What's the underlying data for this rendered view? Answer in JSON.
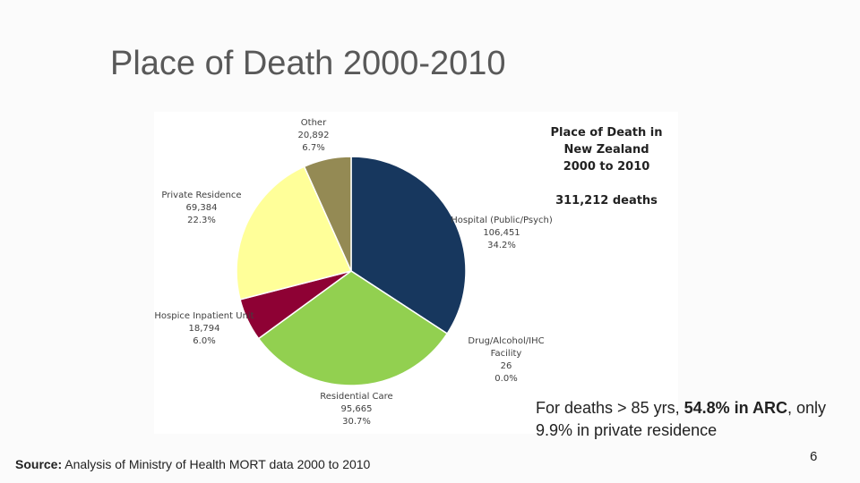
{
  "slide_title": "Place of Death 2000-2010",
  "chart_data": {
    "type": "pie",
    "title": "Place of Death in New Zealand 2000 to 2010",
    "total_label": "311,212 deaths",
    "categories": [
      "Hospital (Public/Psych)",
      "Drug/Alcohol/IHC Facility",
      "Residential Care",
      "Hospice Inpatient Unit",
      "Private Residence",
      "Other"
    ],
    "values": [
      106451,
      26,
      95665,
      18794,
      69384,
      20892
    ],
    "value_labels": [
      "106,451",
      "26",
      "95,665",
      "18,794",
      "69,384",
      "20,892"
    ],
    "percent_labels": [
      "34.2%",
      "0.0%",
      "30.7%",
      "6.0%",
      "22.3%",
      "6.7%"
    ],
    "colors": [
      "#17375e",
      "#4f81bd",
      "#92d050",
      "#8e0134",
      "#ffff99",
      "#948a54"
    ]
  },
  "note": {
    "parts": [
      "For deaths > 85 yrs, ",
      "54.8% in ARC",
      ", only 9.9% in private residence"
    ]
  },
  "source": {
    "label": "Source:",
    "text": " Analysis of Ministry of Health MORT data 2000 to 2010"
  },
  "page_number": "6"
}
